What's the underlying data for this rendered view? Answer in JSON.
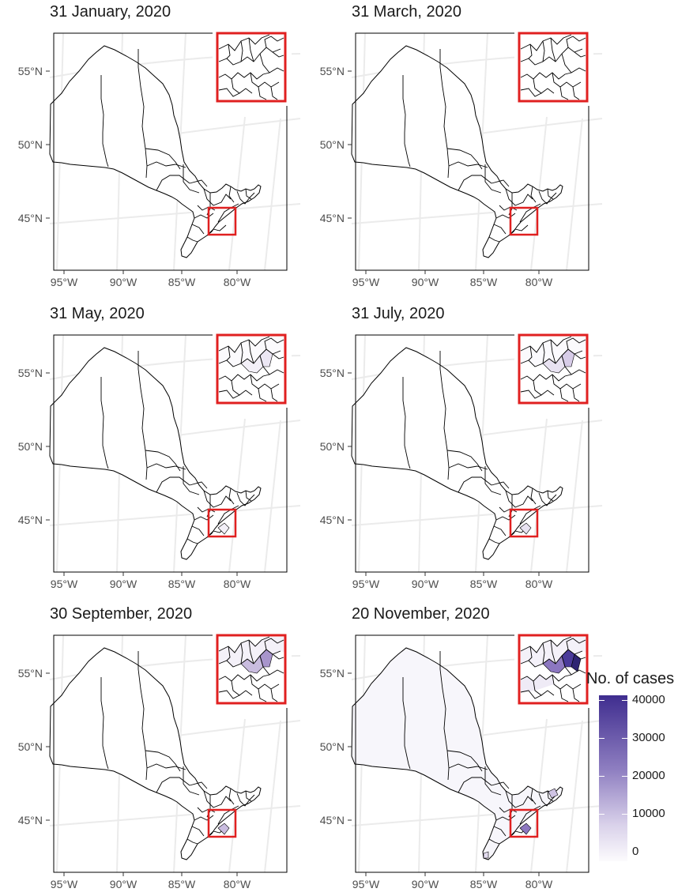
{
  "panels": [
    {
      "title": "31 January, 2020",
      "level": 0
    },
    {
      "title": "31 March, 2020",
      "level": 0
    },
    {
      "title": "31 May, 2020",
      "level": 1
    },
    {
      "title": "31 July, 2020",
      "level": 2
    },
    {
      "title": "30 September, 2020",
      "level": 3
    },
    {
      "title": "20 November, 2020",
      "level": 4
    }
  ],
  "latitude_labels": [
    "55°N",
    "50°N",
    "45°N"
  ],
  "longitude_labels": [
    "95°W",
    "90°W",
    "85°W",
    "80°W"
  ],
  "legend": {
    "title": "No. of cases",
    "ticks": [
      "40000",
      "30000",
      "20000",
      "10000",
      "0"
    ],
    "range": [
      0,
      44000
    ],
    "color_low": "#fcfbfd",
    "color_high": "#3f2d8f"
  },
  "colors": {
    "inset_border": "#e02020",
    "graticule": "#ebebeb",
    "region_stroke": "#000000"
  }
}
